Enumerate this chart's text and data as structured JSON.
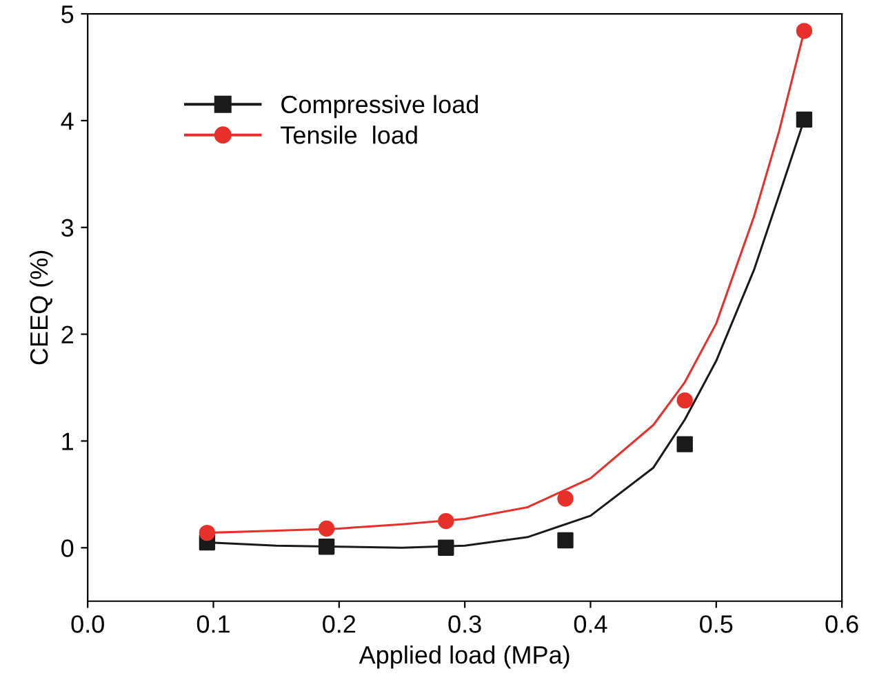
{
  "chart_data": {
    "type": "scatter",
    "xlabel": "Applied load (MPa)",
    "ylabel": "CEEQ (%)",
    "xlim": [
      0.0,
      0.6
    ],
    "xticks": [
      {
        "value": 0.0,
        "label": "0.0"
      },
      0.1,
      0.2,
      0.3,
      0.4,
      0.5,
      0.6
    ],
    "ylim": [
      -0.5,
      5
    ],
    "yticks": [
      0,
      1,
      2,
      3,
      4,
      5
    ],
    "grid": false,
    "legend": "top left",
    "series": [
      {
        "name": "Compressive load",
        "marker": "square",
        "color": "#1a1a1a",
        "x": [
          0.095,
          0.19,
          0.285,
          0.38,
          0.475,
          0.57
        ],
        "values": [
          0.05,
          0.01,
          0.0,
          0.07,
          0.97,
          4.01
        ]
      },
      {
        "name": "Tensile  load",
        "marker": "circle",
        "color": "#e8302a",
        "x": [
          0.095,
          0.19,
          0.285,
          0.38,
          0.475,
          0.57
        ],
        "values": [
          0.14,
          0.18,
          0.25,
          0.46,
          1.38,
          4.84
        ]
      },
      {
        "type": "line",
        "color": "#1a1a1a",
        "x": [
          0.095,
          0.15,
          0.2,
          0.25,
          0.3,
          0.35,
          0.4,
          0.45,
          0.475,
          0.5,
          0.53,
          0.55,
          0.57
        ],
        "values": [
          0.05,
          0.02,
          0.01,
          0.0,
          0.02,
          0.1,
          0.3,
          0.75,
          1.2,
          1.75,
          2.6,
          3.3,
          4.01
        ]
      },
      {
        "type": "line",
        "color": "#e8302a",
        "x": [
          0.095,
          0.15,
          0.2,
          0.25,
          0.3,
          0.35,
          0.4,
          0.45,
          0.475,
          0.5,
          0.53,
          0.55,
          0.57
        ],
        "values": [
          0.14,
          0.16,
          0.18,
          0.22,
          0.27,
          0.38,
          0.65,
          1.15,
          1.55,
          2.1,
          3.1,
          3.9,
          4.84
        ]
      }
    ]
  }
}
